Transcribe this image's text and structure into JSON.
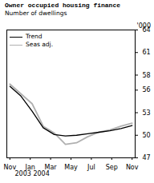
{
  "chart_data": {
    "type": "line",
    "title": "Owner occupied housing finance",
    "subtitle": "Number of dwellings",
    "y_label": "'000",
    "x_label": "2003 2004",
    "x": [
      0,
      1.0909090909090908,
      2.1818181818181817,
      3.2727272727272725,
      4.363636363636363,
      5.454545454545454,
      6.545454545454545,
      7.636363636363636,
      8.727272727272727,
      9.818181818181818,
      10.909090909090908,
      12
    ],
    "series": [
      {
        "name": "Trend",
        "color": "#000000",
        "values": [
          56.5,
          55.2,
          53.2,
          51.0,
          50.1,
          49.9,
          50.0,
          50.2,
          50.4,
          50.6,
          50.9,
          51.3
        ]
      },
      {
        "name": "Seas adj.",
        "color": "#b0b0b0",
        "values": [
          56.8,
          55.5,
          54.2,
          51.2,
          50.3,
          48.8,
          49.0,
          49.8,
          50.4,
          50.7,
          51.2,
          51.6
        ]
      }
    ],
    "xlim": [
      -0.3,
      12.3
    ],
    "xticks": [
      {
        "value": 0,
        "label": "Nov"
      },
      {
        "value": 2,
        "label": "Jan"
      },
      {
        "value": 4,
        "label": "Mar"
      },
      {
        "value": 6,
        "label": "May"
      },
      {
        "value": 8,
        "label": "Jul"
      },
      {
        "value": 10,
        "label": "Sep"
      },
      {
        "value": 12,
        "label": "Nov"
      }
    ],
    "ylim": [
      47,
      64
    ],
    "yticks": [
      47,
      50,
      53,
      56,
      58,
      61,
      64
    ],
    "grid": false,
    "legend": "upper left"
  }
}
